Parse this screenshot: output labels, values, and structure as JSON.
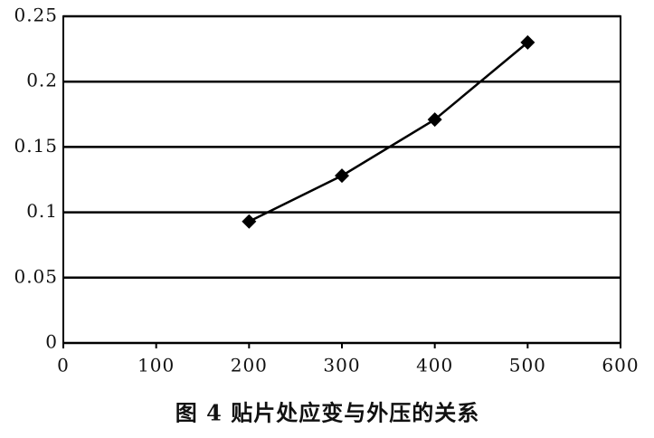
{
  "chart_data": {
    "type": "line",
    "title": "图 4  贴片处应变与外压的关系",
    "x": [
      200,
      300,
      400,
      500
    ],
    "values": [
      0.093,
      0.128,
      0.171,
      0.23
    ],
    "color": "#000000",
    "xlim": [
      0,
      600
    ],
    "xticks": [
      0,
      100,
      200,
      300,
      400,
      500,
      600
    ],
    "ylim": [
      0,
      0.25
    ],
    "yticks": [
      0,
      0.05,
      0.1,
      0.15,
      0.2,
      0.25
    ],
    "grid": true
  }
}
